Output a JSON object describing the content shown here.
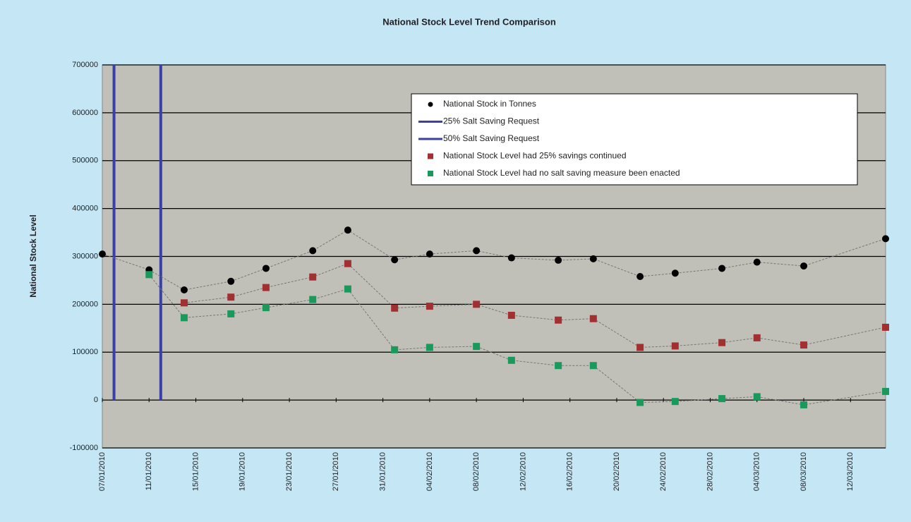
{
  "chart_data": {
    "type": "scatter",
    "title": "National Stock Level Trend Comparison",
    "y_label": "National Stock Level",
    "x": [
      "07/01/2010",
      "11/01/2010",
      "14/01/2010",
      "18/01/2010",
      "21/01/2010",
      "25/01/2010",
      "28/01/2010",
      "01/02/2010",
      "04/02/2010",
      "08/02/2010",
      "11/02/2010",
      "15/02/2010",
      "18/02/2010",
      "22/02/2010",
      "25/02/2010",
      "01/03/2010",
      "04/03/2010",
      "08/03/2010",
      "15/03/2010"
    ],
    "series": [
      {
        "name": "National Stock in Tonnes",
        "color": "#000000",
        "values": [
          305000,
          272000,
          230000,
          248000,
          275000,
          312000,
          355000,
          293000,
          305000,
          312000,
          297000,
          292000,
          295000,
          258000,
          265000,
          275000,
          288000,
          280000,
          337000
        ]
      },
      {
        "name": "National Stock Level had 25% savings continued",
        "color": "#a33030",
        "values": [
          null,
          null,
          203000,
          215000,
          235000,
          257000,
          285000,
          192000,
          196000,
          200000,
          177000,
          167000,
          170000,
          110000,
          113000,
          120000,
          130000,
          115000,
          152000
        ]
      },
      {
        "name": "National Stock Level had no salt saving measure been enacted",
        "color": "#1a9a5a",
        "values": [
          null,
          262000,
          172000,
          180000,
          193000,
          210000,
          232000,
          105000,
          110000,
          112000,
          83000,
          72000,
          72000,
          -5000,
          -3000,
          3000,
          7000,
          -10000,
          18000
        ]
      }
    ],
    "markers": [
      {
        "name": "25% Salt Saving Request",
        "color": "#3b3fa8",
        "x": "08/01/2010"
      },
      {
        "name": "50% Salt Saving Request",
        "color": "#3b3fa8",
        "x": "12/01/2010"
      }
    ],
    "xlim": [
      "07/01/2010",
      "15/03/2010"
    ],
    "xticks": [
      "07/01/2010",
      "11/01/2010",
      "15/01/2010",
      "19/01/2010",
      "23/01/2010",
      "27/01/2010",
      "31/01/2010",
      "04/02/2010",
      "08/02/2010",
      "12/02/2010",
      "16/02/2010",
      "20/02/2010",
      "24/02/2010",
      "28/02/2010",
      "04/03/2010",
      "08/03/2010",
      "12/03/2010"
    ],
    "ylim": [
      -100000,
      700000
    ],
    "yticks": [
      -100000,
      0,
      100000,
      200000,
      300000,
      400000,
      500000,
      600000,
      700000
    ],
    "grid": true
  }
}
